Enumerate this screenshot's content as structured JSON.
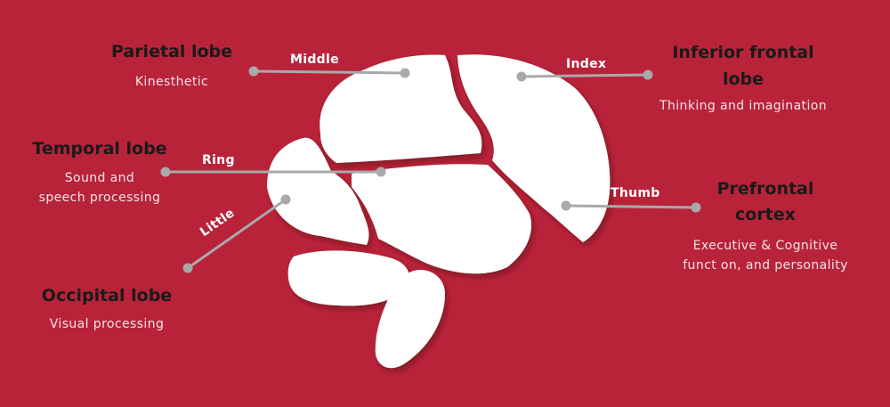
{
  "lobes": {
    "parietal": {
      "title": "Parietal lobe",
      "desc": "Kinesthetic"
    },
    "temporal": {
      "title": "Temporal lobe",
      "desc_1": "Sound and",
      "desc_2": "speech processing"
    },
    "occipital": {
      "title": "Occipital lobe",
      "desc": "Visual processing"
    },
    "inferior_frontal": {
      "title_1": "Inferior frontal",
      "title_2": "lobe",
      "desc": "Thinking and imagination"
    },
    "prefrontal": {
      "title_1": "Prefrontal",
      "title_2": "cortex",
      "desc_1": "Executive & Cognitive",
      "desc_2": "funct on, and personality"
    }
  },
  "fingers": {
    "middle": "Middle",
    "ring": "Ring",
    "little": "Little",
    "index": "Index",
    "thumb": "Thumb"
  },
  "colors": {
    "background": "#b8233a",
    "brain": "#ffffff",
    "connector": "#a9a9a9"
  }
}
